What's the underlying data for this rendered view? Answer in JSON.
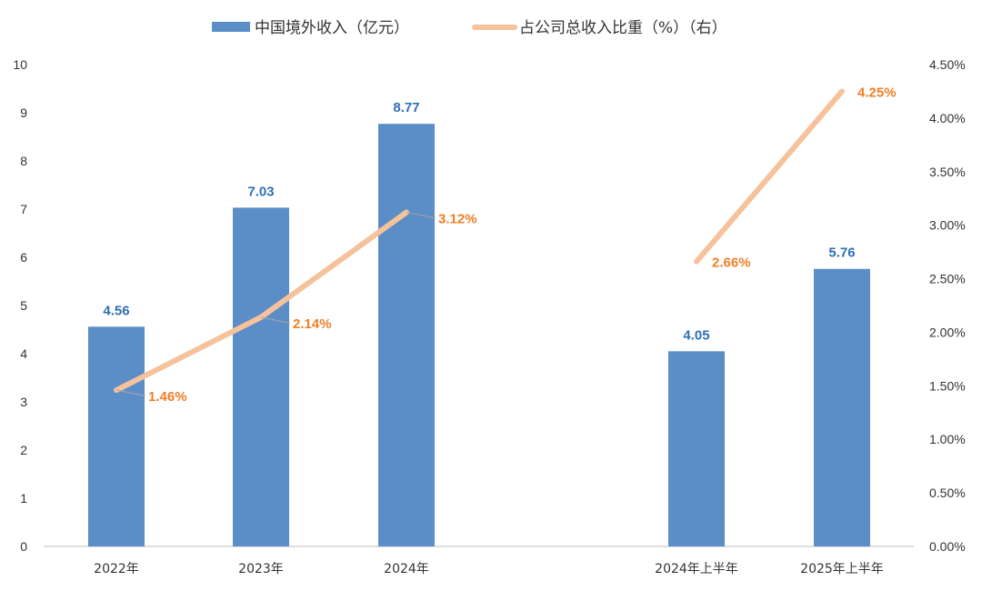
{
  "chart_data": {
    "type": "bar",
    "categories": [
      "2022年",
      "2023年",
      "2024年",
      "",
      "2024年上半年",
      "2025年上半年"
    ],
    "series": [
      {
        "name": "中国境外收入（亿元）",
        "type": "bar",
        "axis": "left",
        "values": [
          4.56,
          7.03,
          8.77,
          null,
          4.05,
          5.76
        ],
        "labels": [
          "4.56",
          "7.03",
          "8.77",
          "",
          "4.05",
          "5.76"
        ]
      },
      {
        "name": "占公司总收入比重（%）（右）",
        "type": "line",
        "axis": "right",
        "values": [
          1.46,
          2.14,
          3.12,
          null,
          2.66,
          4.25
        ],
        "labels": [
          "1.46%",
          "2.14%",
          "3.12%",
          "",
          "2.66%",
          "4.25%"
        ]
      }
    ],
    "y_left": {
      "ylim": [
        0,
        10
      ],
      "ticks": [
        "0",
        "1",
        "2",
        "3",
        "4",
        "5",
        "6",
        "7",
        "8",
        "9",
        "10"
      ]
    },
    "y_right": {
      "ylim": [
        0,
        4.5
      ],
      "ticks": [
        "0.00%",
        "0.50%",
        "1.00%",
        "1.50%",
        "2.00%",
        "2.50%",
        "3.00%",
        "3.50%",
        "4.00%",
        "4.50%"
      ]
    },
    "grid": false,
    "legend": "top-center",
    "colors": {
      "bar": "#5b8ec6",
      "line": "#f6c29c",
      "bar_label": "#2e6fb6",
      "line_label": "#f07e25",
      "axis": "#bfbfbf"
    }
  }
}
